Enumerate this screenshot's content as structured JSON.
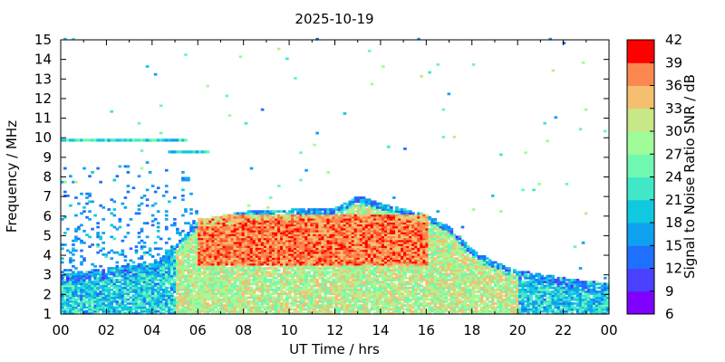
{
  "chart_data": {
    "type": "heatmap",
    "title": "2025-10-19",
    "xlabel": "UT Time / hrs",
    "ylabel": "Frequency / MHz",
    "colorbar_label": "Signal to Noise Ratio SNR / dB",
    "xlim": [
      0,
      24
    ],
    "ylim": [
      1,
      15
    ],
    "x_ticks": [
      "00",
      "02",
      "04",
      "06",
      "08",
      "10",
      "12",
      "14",
      "16",
      "18",
      "20",
      "22",
      "00"
    ],
    "y_ticks": [
      "1",
      "2",
      "3",
      "4",
      "5",
      "6",
      "7",
      "8",
      "9",
      "10",
      "11",
      "12",
      "13",
      "14",
      "15"
    ],
    "colorbar_range": [
      6,
      42
    ],
    "colorbar_ticks": [
      "6",
      "9",
      "12",
      "15",
      "18",
      "21",
      "24",
      "27",
      "30",
      "33",
      "36",
      "39",
      "42"
    ],
    "colorbar_colors": [
      "#8000ff",
      "#4a40ff",
      "#1e70ff",
      "#10a0f0",
      "#10c8e0",
      "#40e8c8",
      "#70f8b0",
      "#a0fc98",
      "#c8e888",
      "#f4c070",
      "#fc8850",
      "#fc5028"
    ],
    "high_color": "#ff0000",
    "grid": false,
    "region_summary": {
      "f_upper_MHz": [
        [
          0,
          3.0
        ],
        [
          2,
          3.3
        ],
        [
          4,
          3.6
        ],
        [
          5,
          4.5
        ],
        [
          6,
          5.8
        ],
        [
          8,
          6.2
        ],
        [
          10,
          6.3
        ],
        [
          12,
          6.4
        ],
        [
          13,
          7.0
        ],
        [
          14,
          6.6
        ],
        [
          16,
          6.0
        ],
        [
          17,
          5.4
        ],
        [
          18,
          4.2
        ],
        [
          19,
          3.6
        ],
        [
          20,
          3.2
        ],
        [
          22,
          2.8
        ],
        [
          24,
          2.5
        ]
      ],
      "f_lower_MHz": 1.0,
      "peak_snr_dB": 42,
      "peak_region": {
        "time_hrs": [
          6,
          16
        ],
        "freq_MHz": [
          3.5,
          6.0
        ]
      }
    }
  }
}
